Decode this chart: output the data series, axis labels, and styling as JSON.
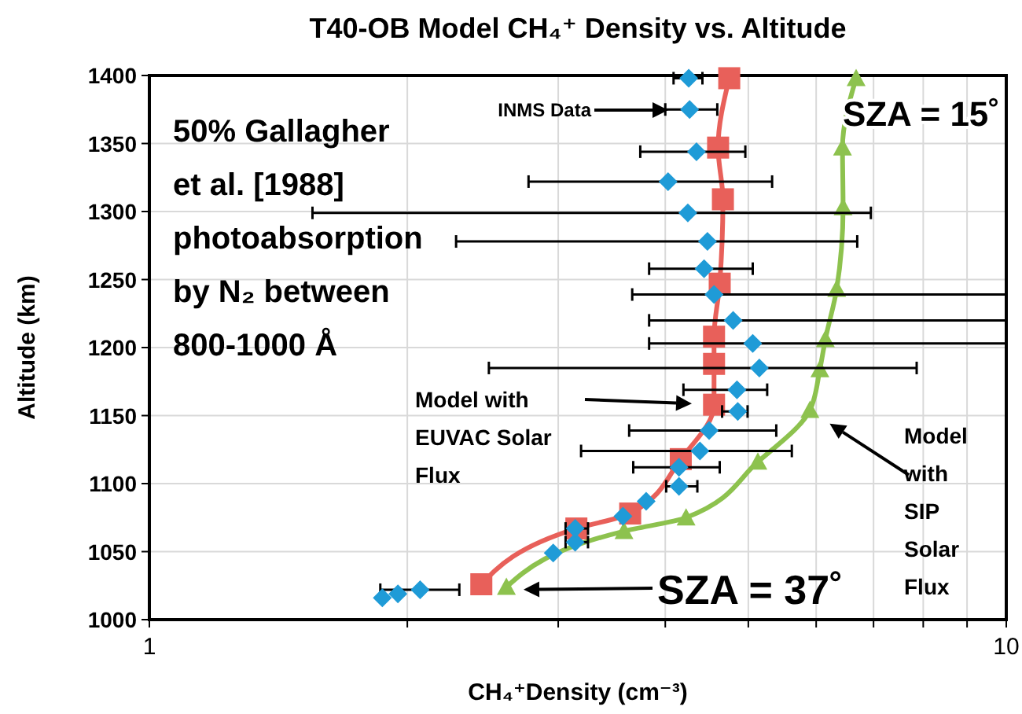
{
  "chart_data": {
    "type": "line",
    "title": "T40-OB Model CH₄⁺ Density vs. Altitude",
    "xlabel": "CH₄⁺Density (cm⁻³)",
    "ylabel": "Altitude (km)",
    "log": "x",
    "grid": true,
    "xlim": [
      1,
      10
    ],
    "xticks": [
      1,
      {
        "value": 2,
        "label": null
      },
      {
        "value": 3,
        "label": null
      },
      {
        "value": 4,
        "label": null
      },
      {
        "value": 5,
        "label": null
      },
      {
        "value": 6,
        "label": null
      },
      {
        "value": 7,
        "label": null
      },
      {
        "value": 8,
        "label": null
      },
      {
        "value": 9,
        "label": null
      },
      10
    ],
    "ylim": [
      1000,
      1400
    ],
    "yticks": [
      1000,
      1050,
      1100,
      1150,
      1200,
      1250,
      1300,
      1350,
      1400
    ],
    "series": [
      {
        "type": "scatter",
        "marker": "diamond",
        "color": "#1f9bd7",
        "x": [
          1.87,
          1.95,
          2.07,
          2.96,
          3.14,
          3.14,
          3.57,
          3.8,
          4.15,
          4.15,
          4.39,
          4.5,
          4.86,
          4.85,
          5.15,
          5.06,
          4.8,
          4.56,
          4.44,
          4.48,
          4.25,
          4.03,
          4.35,
          4.27,
          4.26
        ],
        "values": [
          1016,
          1019,
          1022,
          1049,
          1057,
          1067,
          1076,
          1087,
          1098,
          1112,
          1124,
          1139,
          1153,
          1169,
          1185,
          1203,
          1220,
          1239,
          1258,
          1278,
          1299,
          1322,
          1344,
          1375,
          1398
        ],
        "xerrors": [
          null,
          null,
          [
            1.86,
            2.3
          ],
          null,
          [
            3.06,
            3.25
          ],
          [
            3.06,
            3.25
          ],
          null,
          null,
          [
            4.01,
            4.36
          ],
          [
            3.67,
            4.63
          ],
          [
            3.19,
            5.62
          ],
          [
            3.63,
            5.39
          ],
          [
            4.66,
            4.99
          ],
          [
            4.2,
            5.26
          ],
          [
            2.49,
            7.86
          ],
          [
            3.83,
            10
          ],
          [
            3.83,
            10
          ],
          [
            3.66,
            10
          ],
          [
            3.83,
            5.06
          ],
          [
            2.28,
            6.7
          ],
          [
            1.55,
            6.95
          ],
          [
            2.77,
            5.33
          ],
          [
            3.74,
            4.96
          ],
          [
            4.0,
            4.6
          ],
          [
            4.09,
            4.42
          ]
        ]
      },
      {
        "type": "line",
        "marker": "square",
        "color": "#e8605a",
        "x": [
          2.44,
          3.15,
          3.64,
          4.17,
          4.56,
          4.56,
          4.56,
          4.63,
          4.67,
          4.61,
          4.75
        ],
        "values": [
          1026,
          1067,
          1078,
          1118,
          1158,
          1188,
          1208,
          1247,
          1309,
          1347,
          1398
        ]
      },
      {
        "type": "line",
        "marker": "triangle",
        "color": "#8dc24e",
        "x": [
          2.61,
          3.58,
          4.23,
          5.13,
          5.9,
          6.06,
          6.15,
          6.34,
          6.45,
          6.44,
          6.68
        ],
        "values": [
          1024,
          1065,
          1075,
          1116,
          1154,
          1184,
          1206,
          1243,
          1303,
          1347,
          1398
        ]
      }
    ],
    "annotations": [
      "50% Gallagher et al. [1988] photoabsorption by N₂ between 800-1000 Å",
      "SZA = 15˚",
      "INMS Data",
      "Model with EUVAC Solar Flux",
      "Model with SIP Solar Flux",
      "SZA = 37˚"
    ]
  }
}
